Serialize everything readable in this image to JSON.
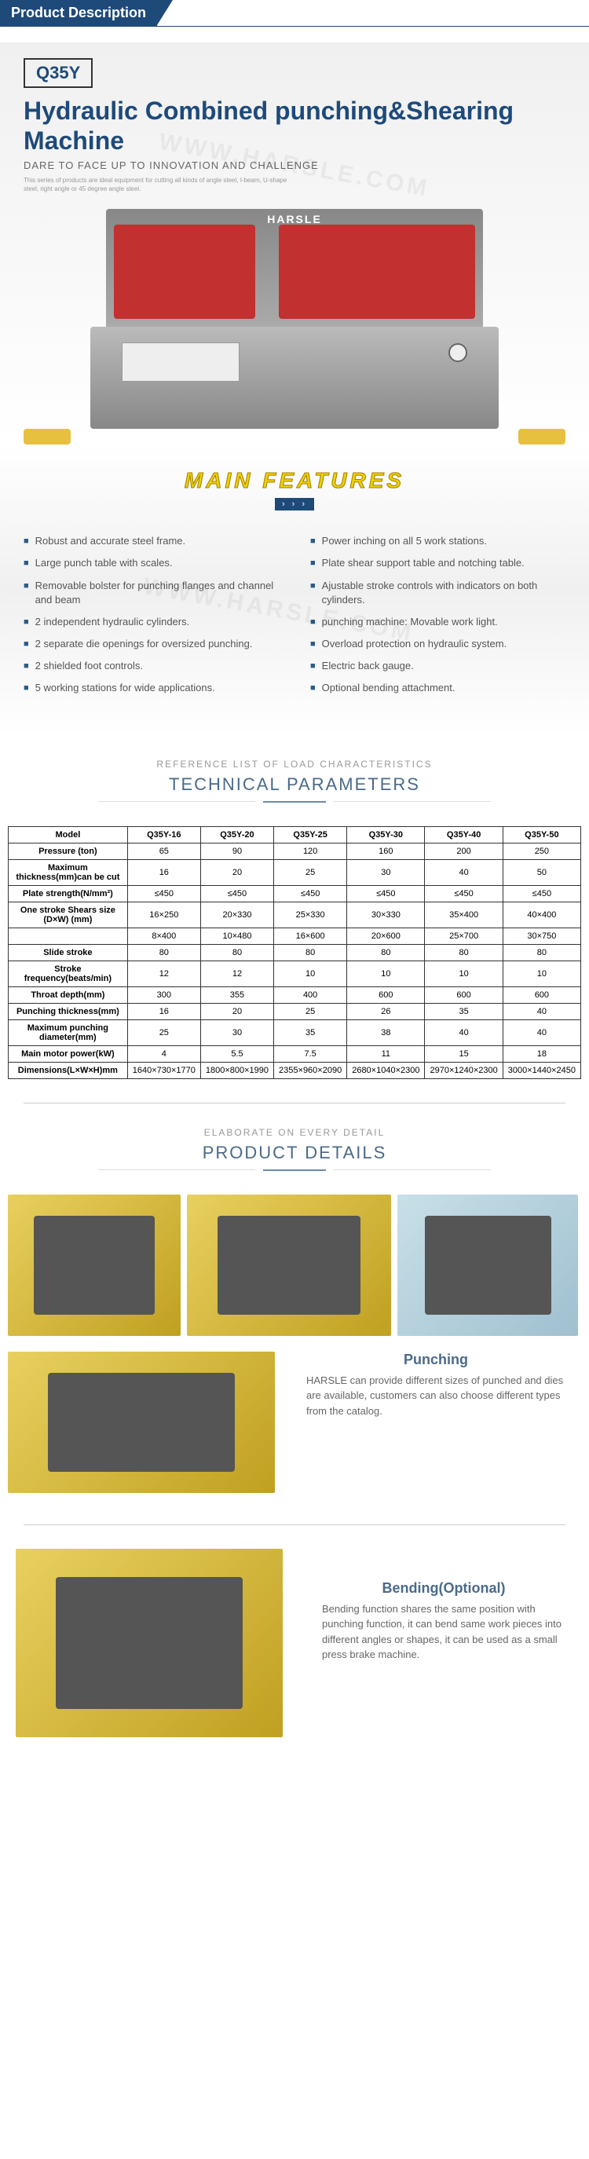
{
  "section_header": "Product Description",
  "hero": {
    "model": "Q35Y",
    "title": "Hydraulic Combined punching&Shearing Machine",
    "subtitle": "DARE TO FACE UP TO INNOVATION AND CHALLENGE",
    "small": "This series of products are ideal equipment for cutting all kinds of angle steel, I-beam, U-shape steel, right angle or 45 degree angle steel.",
    "brand": "HARSLE"
  },
  "features": {
    "title": "MAIN FEATURES",
    "chev": "› › ›",
    "left": [
      "Robust and accurate steel frame.",
      "Large punch table with scales.",
      "Removable bolster for punching flanges and channel and beam",
      "2 independent hydraulic cylinders.",
      "2 separate die openings for oversized punching.",
      "2 shielded foot controls.",
      "5 working stations for wide applications."
    ],
    "right": [
      "Power inching on all 5 work stations.",
      "Plate shear support table and notching table.",
      "Ajustable stroke controls with indicators on both cylinders.",
      "punching machine: Movable work light.",
      "Overload protection on hydraulic system.",
      "Electric back gauge.",
      "Optional bending attachment."
    ]
  },
  "params": {
    "sub": "REFERENCE LIST OF LOAD CHARACTERISTICS",
    "title": "TECHNICAL PARAMETERS",
    "headers": [
      "Model",
      "Q35Y-16",
      "Q35Y-20",
      "Q35Y-25",
      "Q35Y-30",
      "Q35Y-40",
      "Q35Y-50"
    ],
    "rows": [
      [
        "Pressure (ton)",
        "65",
        "90",
        "120",
        "160",
        "200",
        "250"
      ],
      [
        "Maximum thickness(mm)can be cut",
        "16",
        "20",
        "25",
        "30",
        "40",
        "50"
      ],
      [
        "Plate strength(N/mm²)",
        "≤450",
        "≤450",
        "≤450",
        "≤450",
        "≤450",
        "≤450"
      ],
      [
        "One stroke Shears size (D×W) (mm)",
        "16×250",
        "20×330",
        "25×330",
        "30×330",
        "35×400",
        "40×400"
      ],
      [
        "",
        "8×400",
        "10×480",
        "16×600",
        "20×600",
        "25×700",
        "30×750"
      ],
      [
        "Slide stroke",
        "80",
        "80",
        "80",
        "80",
        "80",
        "80"
      ],
      [
        "Stroke frequency(beats/min)",
        "12",
        "12",
        "10",
        "10",
        "10",
        "10"
      ],
      [
        "Throat depth(mm)",
        "300",
        "355",
        "400",
        "600",
        "600",
        "600"
      ],
      [
        "Punching thickness(mm)",
        "16",
        "20",
        "25",
        "26",
        "35",
        "40"
      ],
      [
        "Maximum punching diameter(mm)",
        "25",
        "30",
        "35",
        "38",
        "40",
        "40"
      ],
      [
        "Main motor power(kW)",
        "4",
        "5.5",
        "7.5",
        "11",
        "15",
        "18"
      ],
      [
        "Dimensions(L×W×H)mm",
        "1640×730×1770",
        "1800×800×1990",
        "2355×960×2090",
        "2680×1040×2300",
        "2970×1240×2300",
        "3000×1440×2450"
      ]
    ]
  },
  "details": {
    "sub": "ELABORATE ON EVERY DETAIL",
    "title": "PRODUCT DETAILS",
    "punching": {
      "h": "Punching",
      "p": "HARSLE can provide different sizes of punched and dies are available, customers can also choose different types from the catalog."
    },
    "bending": {
      "h": "Bending(Optional)",
      "p": "Bending function shares the same position with punching function, it can bend same work pieces into different angles or shapes, it can be used as a small press brake machine."
    }
  },
  "watermark": "WWW.HARSLE.COM"
}
